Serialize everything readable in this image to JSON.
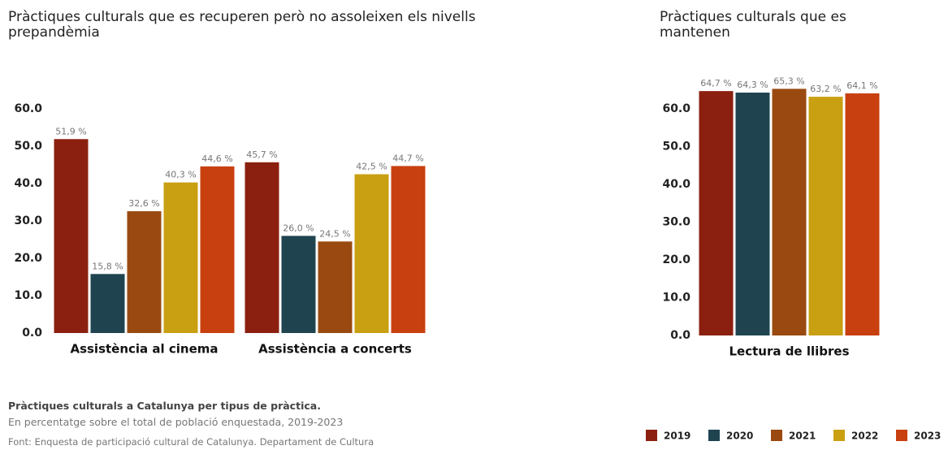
{
  "chart_data": [
    {
      "type": "bar",
      "title": "Pràctiques culturals que es recuperen però no assoleixen els nivells prepandèmia",
      "categories": [
        "Assistència al cinema",
        "Assistència a concerts"
      ],
      "series": [
        {
          "name": "2019",
          "color": "#8b2010",
          "values": [
            51.9,
            45.7
          ],
          "value_labels": [
            "51,9 %",
            "45,7 %"
          ]
        },
        {
          "name": "2020",
          "color": "#1f4450",
          "values": [
            15.8,
            26.0
          ],
          "value_labels": [
            "15,8 %",
            "26,0 %"
          ]
        },
        {
          "name": "2021",
          "color": "#9a4a10",
          "values": [
            32.6,
            24.5
          ],
          "value_labels": [
            "32,6 %",
            "24,5 %"
          ]
        },
        {
          "name": "2022",
          "color": "#c9a012",
          "values": [
            40.3,
            42.5
          ],
          "value_labels": [
            "40,3 %",
            "42,5 %"
          ]
        },
        {
          "name": "2023",
          "color": "#c8400f",
          "values": [
            44.6,
            44.7
          ],
          "value_labels": [
            "44,6 %",
            "44,7 %"
          ]
        }
      ],
      "ylim": [
        0,
        60
      ],
      "yticks": [
        {
          "value": 0,
          "label": "0.0"
        },
        {
          "value": 10,
          "label": "10.0"
        },
        {
          "value": 20,
          "label": "20.0"
        },
        {
          "value": 30,
          "label": "30.0"
        },
        {
          "value": 40,
          "label": "40.0"
        },
        {
          "value": 50,
          "label": "50.0"
        },
        {
          "value": 60,
          "label": "60.0"
        }
      ],
      "grid": false
    },
    {
      "type": "bar",
      "title": "Pràctiques culturals que es mantenen",
      "categories": [
        "Lectura de llibres"
      ],
      "series": [
        {
          "name": "2019",
          "color": "#8b2010",
          "values": [
            64.7
          ],
          "value_labels": [
            "64,7 %"
          ]
        },
        {
          "name": "2020",
          "color": "#1f4450",
          "values": [
            64.3
          ],
          "value_labels": [
            "64,3 %"
          ]
        },
        {
          "name": "2021",
          "color": "#9a4a10",
          "values": [
            65.3
          ],
          "value_labels": [
            "65,3 %"
          ]
        },
        {
          "name": "2022",
          "color": "#c9a012",
          "values": [
            63.2
          ],
          "value_labels": [
            "63,2 %"
          ]
        },
        {
          "name": "2023",
          "color": "#c8400f",
          "values": [
            64.1
          ],
          "value_labels": [
            "64,1 %"
          ]
        }
      ],
      "ylim": [
        0,
        70
      ],
      "yticks": [
        {
          "value": 0,
          "label": "0.0"
        },
        {
          "value": 10,
          "label": "10.0"
        },
        {
          "value": 20,
          "label": "20.0"
        },
        {
          "value": 30,
          "label": "30.0"
        },
        {
          "value": 40,
          "label": "40.0"
        },
        {
          "value": 50,
          "label": "50.0"
        },
        {
          "value": 60,
          "label": "60.0"
        }
      ],
      "grid": false
    }
  ],
  "caption": {
    "title": "Pràctiques culturals a Catalunya per tipus de pràctica.",
    "subtitle": "En percentatge sobre el total de població enquestada, 2019-2023",
    "source": "Font: Enquesta de participació cultural de Catalunya. Departament de Cultura"
  }
}
